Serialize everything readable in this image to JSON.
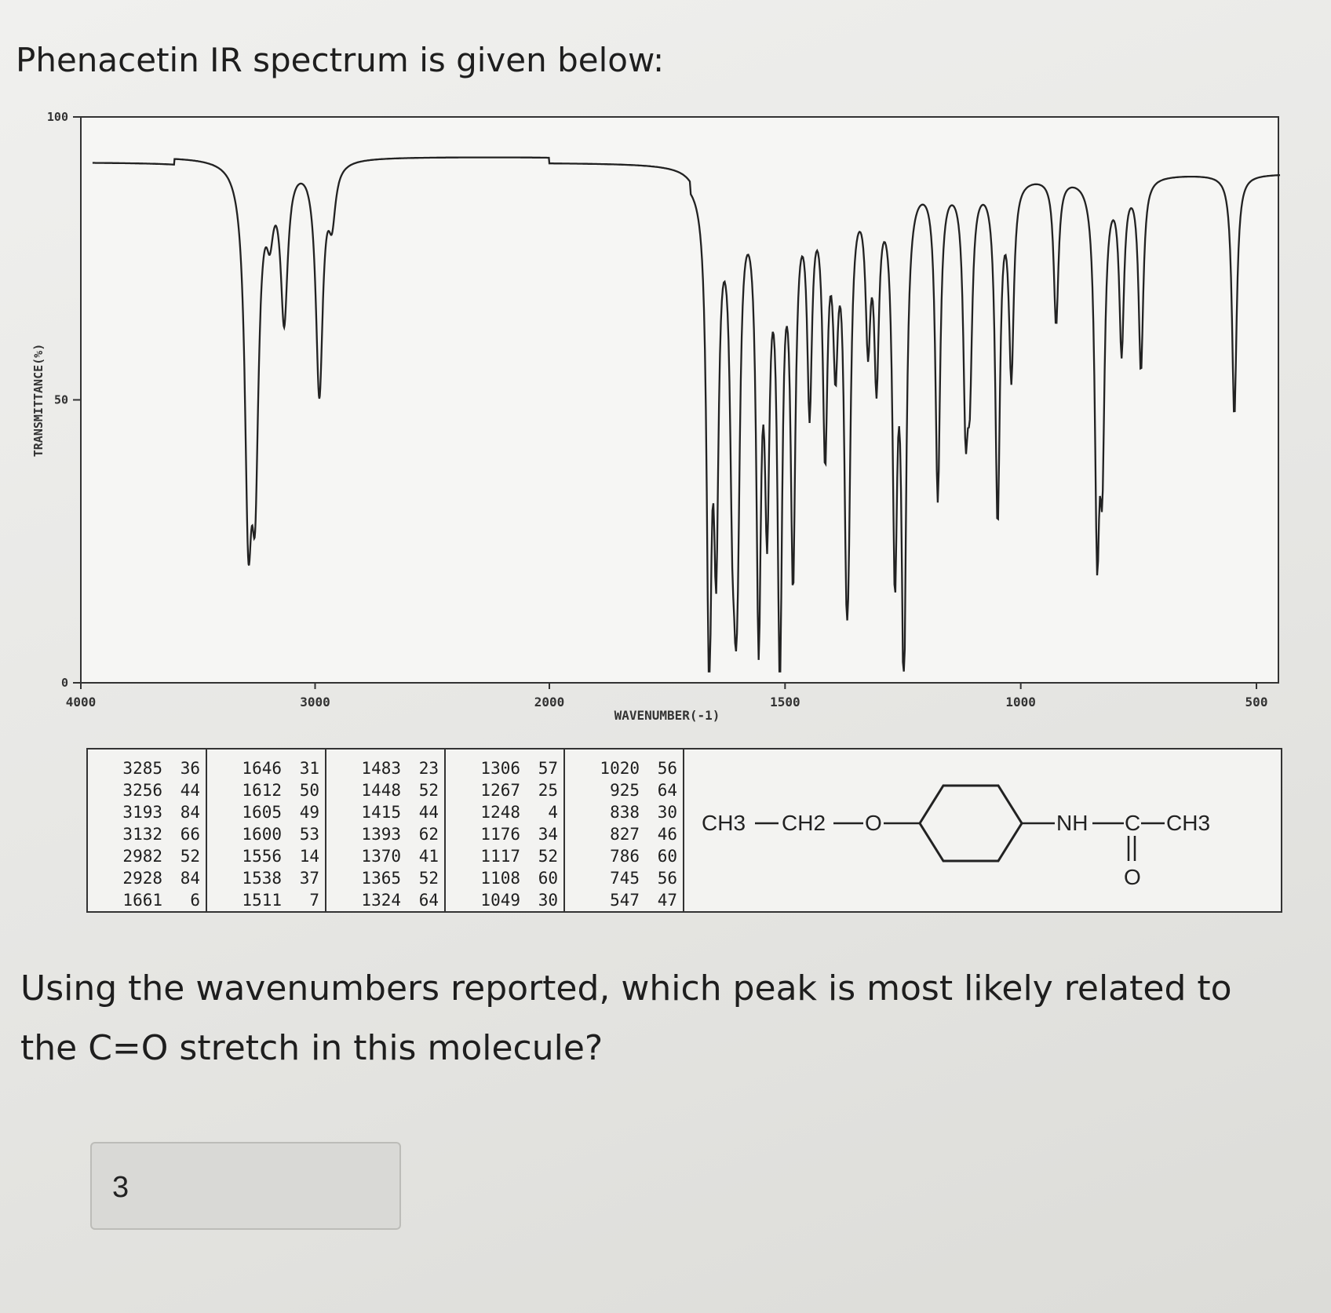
{
  "question": {
    "title": "Phenacetin IR spectrum is given below:",
    "prompt": "Using the wavenumbers reported, which peak is most likely related to the C=O stretch in this molecule?"
  },
  "answer_input": {
    "value": "3"
  },
  "chart_data": {
    "type": "line",
    "xlabel": "WAVENUMBER(-1)",
    "ylabel": "TRANSMITTANCE(%)",
    "x_ticks": [
      "4000",
      "3000",
      "2000",
      "1500",
      "1000",
      "500"
    ],
    "y_ticks": [
      "100",
      "50",
      "0"
    ],
    "ylim": [
      0,
      100
    ],
    "x_axis": "wavenumber, scale doubles below 2000",
    "peaks": [
      [
        3285,
        36
      ],
      [
        3256,
        44
      ],
      [
        3193,
        84
      ],
      [
        3132,
        66
      ],
      [
        2982,
        52
      ],
      [
        2928,
        84
      ],
      [
        1661,
        6
      ],
      [
        1646,
        31
      ],
      [
        1612,
        50
      ],
      [
        1605,
        49
      ],
      [
        1600,
        53
      ],
      [
        1556,
        14
      ],
      [
        1538,
        37
      ],
      [
        1511,
        7
      ],
      [
        1483,
        23
      ],
      [
        1448,
        52
      ],
      [
        1415,
        44
      ],
      [
        1393,
        62
      ],
      [
        1370,
        41
      ],
      [
        1365,
        52
      ],
      [
        1324,
        64
      ],
      [
        1306,
        57
      ],
      [
        1267,
        25
      ],
      [
        1248,
        4
      ],
      [
        1176,
        34
      ],
      [
        1117,
        52
      ],
      [
        1108,
        60
      ],
      [
        1049,
        30
      ],
      [
        1020,
        56
      ],
      [
        925,
        64
      ],
      [
        838,
        30
      ],
      [
        827,
        46
      ],
      [
        786,
        60
      ],
      [
        745,
        56
      ],
      [
        547,
        47
      ]
    ]
  },
  "peak_table": [
    [
      [
        "3285",
        "36"
      ],
      [
        "3256",
        "44"
      ],
      [
        "3193",
        "84"
      ],
      [
        "3132",
        "66"
      ],
      [
        "2982",
        "52"
      ],
      [
        "2928",
        "84"
      ],
      [
        "1661",
        "6"
      ]
    ],
    [
      [
        "1646",
        "31"
      ],
      [
        "1612",
        "50"
      ],
      [
        "1605",
        "49"
      ],
      [
        "1600",
        "53"
      ],
      [
        "1556",
        "14"
      ],
      [
        "1538",
        "37"
      ],
      [
        "1511",
        "7"
      ]
    ],
    [
      [
        "1483",
        "23"
      ],
      [
        "1448",
        "52"
      ],
      [
        "1415",
        "44"
      ],
      [
        "1393",
        "62"
      ],
      [
        "1370",
        "41"
      ],
      [
        "1365",
        "52"
      ],
      [
        "1324",
        "64"
      ]
    ],
    [
      [
        "1306",
        "57"
      ],
      [
        "1267",
        "25"
      ],
      [
        "1248",
        "4"
      ],
      [
        "1176",
        "34"
      ],
      [
        "1117",
        "52"
      ],
      [
        "1108",
        "60"
      ],
      [
        "1049",
        "30"
      ]
    ],
    [
      [
        "1020",
        "56"
      ],
      [
        "925",
        "64"
      ],
      [
        "838",
        "30"
      ],
      [
        "827",
        "46"
      ],
      [
        "786",
        "60"
      ],
      [
        "745",
        "56"
      ],
      [
        "547",
        "47"
      ]
    ]
  ],
  "structure": {
    "ch3_left": "CH3",
    "ch2": "CH2",
    "oxygen": "O",
    "nh": "NH",
    "carbonyl_c": "C",
    "ch3_right": "CH3",
    "carbonyl_o": "O"
  }
}
